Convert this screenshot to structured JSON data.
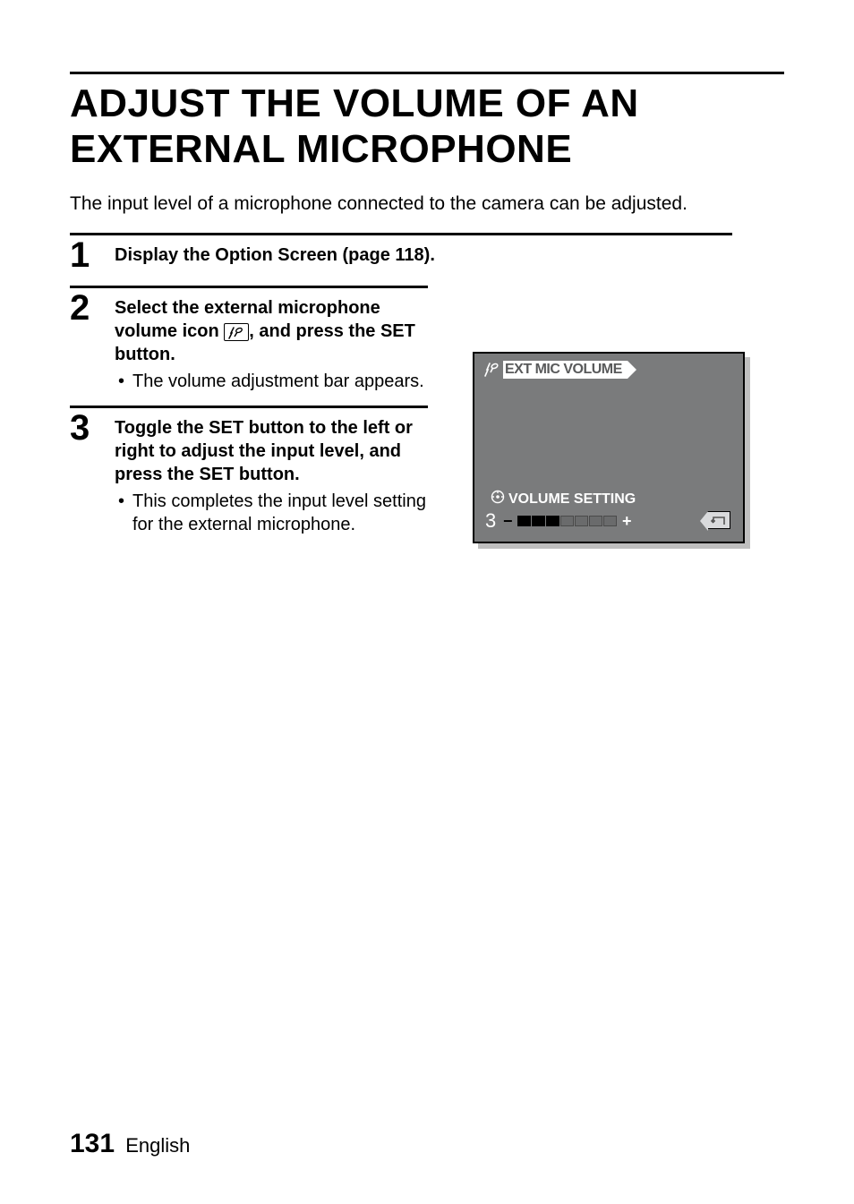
{
  "title": "ADJUST THE VOLUME OF AN EXTERNAL MICROPHONE",
  "intro": "The input level of a microphone connected to the camera can be adjusted.",
  "steps": {
    "s1": {
      "num": "1",
      "bold": "Display the Option Screen (page 118)."
    },
    "s2": {
      "num": "2",
      "bold_a": "Select the external microphone volume icon ",
      "bold_b": ", and press the SET button.",
      "sub": "The volume adjustment bar appears."
    },
    "s3": {
      "num": "3",
      "bold": "Toggle the SET button to the left or right to adjust the input level, and press the SET button.",
      "sub": "This completes the input level setting for the external microphone."
    }
  },
  "lcd": {
    "header": "EXT MIC VOLUME",
    "subtitle": "VOLUME SETTING",
    "value": "3",
    "segments_total": 7,
    "segments_filled": 3,
    "colors": {
      "bg": "#7a7b7c",
      "header_bg": "#ffffff",
      "header_fg": "#595a5b",
      "seg_filled": "#000000",
      "seg_empty": "#6a6b6c",
      "back_bg": "#d9dadc"
    }
  },
  "footer": {
    "page": "131",
    "lang": "English"
  }
}
